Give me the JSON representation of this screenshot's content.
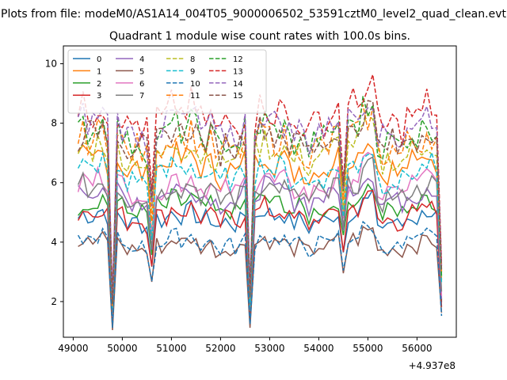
{
  "chart_data": {
    "type": "line",
    "suptitle": "Plots from file: modeM0/AS1A14_004T05_9000006502_53591cztM0_level2_quad_clean.evt",
    "title": "Quadrant 1 module wise count rates with 100.0s bins.",
    "xlabel": "",
    "ylabel": "",
    "x_offset_label": "+4.937e8",
    "xlim": [
      48800,
      56800
    ],
    "ylim": [
      0.8,
      10.6
    ],
    "xticks": [
      "49000",
      "50000",
      "51000",
      "52000",
      "53000",
      "54000",
      "55000",
      "56000"
    ],
    "xtick_values": [
      49000,
      50000,
      51000,
      52000,
      53000,
      54000,
      55000,
      56000
    ],
    "yticks": [
      "2",
      "4",
      "6",
      "8",
      "10"
    ],
    "ytick_values": [
      2,
      4,
      6,
      8,
      10
    ],
    "legend_loc": "upper-left",
    "legend_columns": 4,
    "x_start": 49100,
    "x_step": 100,
    "dips": [
      {
        "index": 7,
        "factor": 0.27
      },
      {
        "index": 15,
        "factor": 0.7
      },
      {
        "index": 35,
        "factor": 0.3
      },
      {
        "index": 54,
        "factor": 0.75
      },
      {
        "index": 74,
        "factor": 0.38
      }
    ],
    "series": [
      {
        "name": "0",
        "color": "#1f77b4",
        "dash": "solid",
        "base": 4.8
      },
      {
        "name": "1",
        "color": "#ff7f0e",
        "dash": "solid",
        "base": 6.6
      },
      {
        "name": "2",
        "color": "#2ca02c",
        "dash": "solid",
        "base": 5.2
      },
      {
        "name": "3",
        "color": "#d62728",
        "dash": "solid",
        "base": 4.9
      },
      {
        "name": "4",
        "color": "#9467bd",
        "dash": "solid",
        "base": 5.6
      },
      {
        "name": "5",
        "color": "#8c564b",
        "dash": "solid",
        "base": 3.9
      },
      {
        "name": "6",
        "color": "#e377c2",
        "dash": "solid",
        "base": 5.9
      },
      {
        "name": "7",
        "color": "#7f7f7f",
        "dash": "solid",
        "base": 5.7
      },
      {
        "name": "8",
        "color": "#bcbd22",
        "dash": "dashed",
        "base": 7.0
      },
      {
        "name": "9",
        "color": "#17becf",
        "dash": "dashed",
        "base": 6.3
      },
      {
        "name": "10",
        "color": "#1f77b4",
        "dash": "dashed",
        "base": 4.0
      },
      {
        "name": "11",
        "color": "#ff7f0e",
        "dash": "dashed",
        "base": 7.3
      },
      {
        "name": "12",
        "color": "#2ca02c",
        "dash": "dashed",
        "base": 7.6
      },
      {
        "name": "13",
        "color": "#d62728",
        "dash": "dashed",
        "base": 8.2
      },
      {
        "name": "14",
        "color": "#9467bd",
        "dash": "dashed",
        "base": 7.9
      },
      {
        "name": "15",
        "color": "#8c564b",
        "dash": "dashed",
        "base": 7.5
      }
    ]
  }
}
